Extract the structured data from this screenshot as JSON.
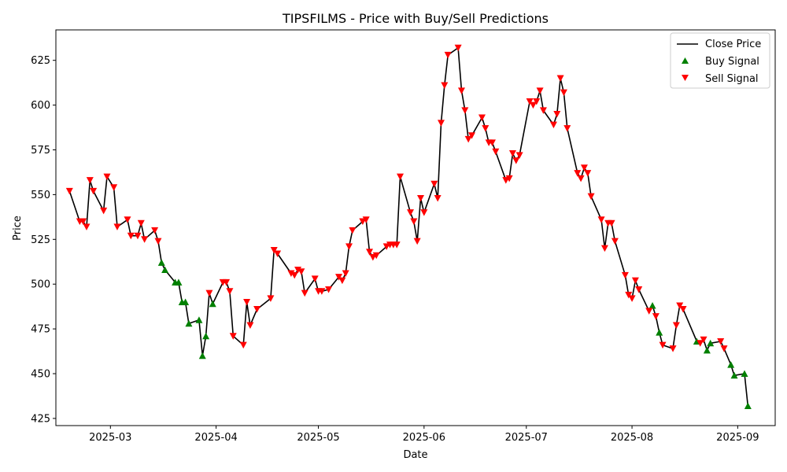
{
  "chart_data": {
    "type": "line",
    "title": "TIPSFILMS - Price with Buy/Sell Predictions",
    "xlabel": "Date",
    "ylabel": "Price",
    "xlim": [
      "2025-02-13",
      "2025-09-12"
    ],
    "ylim": [
      421,
      642
    ],
    "x_ticks": [
      "2025-03",
      "2025-04",
      "2025-05",
      "2025-06",
      "2025-07",
      "2025-08",
      "2025-09"
    ],
    "y_ticks": [
      425,
      450,
      475,
      500,
      525,
      550,
      575,
      600,
      625
    ],
    "grid": false,
    "legend_position": "top-right",
    "colors": {
      "close": "#000000",
      "buy": "#008000",
      "sell": "#ff0000"
    },
    "series": [
      {
        "name": "Close Price",
        "kind": "line",
        "points": [
          [
            "2025-02-17",
            552
          ],
          [
            "2025-02-20",
            535
          ],
          [
            "2025-02-21",
            535
          ],
          [
            "2025-02-22",
            532
          ],
          [
            "2025-02-23",
            558
          ],
          [
            "2025-02-24",
            552
          ],
          [
            "2025-02-27",
            541
          ],
          [
            "2025-02-28",
            560
          ],
          [
            "2025-03-02",
            554
          ],
          [
            "2025-03-03",
            532
          ],
          [
            "2025-03-06",
            536
          ],
          [
            "2025-03-07",
            527
          ],
          [
            "2025-03-09",
            527
          ],
          [
            "2025-03-10",
            534
          ],
          [
            "2025-03-11",
            525
          ],
          [
            "2025-03-14",
            530
          ],
          [
            "2025-03-15",
            524
          ],
          [
            "2025-03-16",
            512
          ],
          [
            "2025-03-17",
            508
          ],
          [
            "2025-03-20",
            501
          ],
          [
            "2025-03-21",
            501
          ],
          [
            "2025-03-22",
            490
          ],
          [
            "2025-03-23",
            490
          ],
          [
            "2025-03-24",
            478
          ],
          [
            "2025-03-27",
            480
          ],
          [
            "2025-03-28",
            460
          ],
          [
            "2025-03-29",
            471
          ],
          [
            "2025-03-30",
            495
          ],
          [
            "2025-03-31",
            489
          ],
          [
            "2025-04-03",
            501
          ],
          [
            "2025-04-04",
            501
          ],
          [
            "2025-04-05",
            496
          ],
          [
            "2025-04-06",
            471
          ],
          [
            "2025-04-09",
            466
          ],
          [
            "2025-04-10",
            490
          ],
          [
            "2025-04-11",
            477
          ],
          [
            "2025-04-13",
            486
          ],
          [
            "2025-04-17",
            492
          ],
          [
            "2025-04-18",
            519
          ],
          [
            "2025-04-19",
            517
          ],
          [
            "2025-04-23",
            506
          ],
          [
            "2025-04-24",
            505
          ],
          [
            "2025-04-25",
            508
          ],
          [
            "2025-04-26",
            507
          ],
          [
            "2025-04-27",
            495
          ],
          [
            "2025-04-30",
            503
          ],
          [
            "2025-05-01",
            496
          ],
          [
            "2025-05-02",
            496
          ],
          [
            "2025-05-04",
            497
          ],
          [
            "2025-05-07",
            504
          ],
          [
            "2025-05-08",
            502
          ],
          [
            "2025-05-09",
            506
          ],
          [
            "2025-05-10",
            521
          ],
          [
            "2025-05-11",
            530
          ],
          [
            "2025-05-14",
            535
          ],
          [
            "2025-05-15",
            536
          ],
          [
            "2025-05-16",
            518
          ],
          [
            "2025-05-17",
            515
          ],
          [
            "2025-05-18",
            516
          ],
          [
            "2025-05-21",
            521
          ],
          [
            "2025-05-22",
            522
          ],
          [
            "2025-05-23",
            522
          ],
          [
            "2025-05-24",
            522
          ],
          [
            "2025-05-25",
            560
          ],
          [
            "2025-05-28",
            540
          ],
          [
            "2025-05-29",
            535
          ],
          [
            "2025-05-30",
            524
          ],
          [
            "2025-05-31",
            548
          ],
          [
            "2025-06-01",
            540
          ],
          [
            "2025-06-04",
            556
          ],
          [
            "2025-06-05",
            548
          ],
          [
            "2025-06-06",
            590
          ],
          [
            "2025-06-07",
            611
          ],
          [
            "2025-06-08",
            628
          ],
          [
            "2025-06-11",
            632
          ],
          [
            "2025-06-12",
            608
          ],
          [
            "2025-06-13",
            597
          ],
          [
            "2025-06-14",
            581
          ],
          [
            "2025-06-15",
            583
          ],
          [
            "2025-06-18",
            593
          ],
          [
            "2025-06-19",
            587
          ],
          [
            "2025-06-20",
            579
          ],
          [
            "2025-06-21",
            579
          ],
          [
            "2025-06-22",
            574
          ],
          [
            "2025-06-25",
            558
          ],
          [
            "2025-06-26",
            559
          ],
          [
            "2025-06-27",
            573
          ],
          [
            "2025-06-28",
            569
          ],
          [
            "2025-06-29",
            572
          ],
          [
            "2025-07-02",
            602
          ],
          [
            "2025-07-03",
            600
          ],
          [
            "2025-07-04",
            602
          ],
          [
            "2025-07-05",
            608
          ],
          [
            "2025-07-06",
            597
          ],
          [
            "2025-07-09",
            589
          ],
          [
            "2025-07-10",
            595
          ],
          [
            "2025-07-11",
            615
          ],
          [
            "2025-07-12",
            607
          ],
          [
            "2025-07-13",
            587
          ],
          [
            "2025-07-16",
            562
          ],
          [
            "2025-07-17",
            559
          ],
          [
            "2025-07-18",
            565
          ],
          [
            "2025-07-19",
            562
          ],
          [
            "2025-07-20",
            549
          ],
          [
            "2025-07-23",
            536
          ],
          [
            "2025-07-24",
            520
          ],
          [
            "2025-07-25",
            534
          ],
          [
            "2025-07-26",
            534
          ],
          [
            "2025-07-27",
            524
          ],
          [
            "2025-07-30",
            505
          ],
          [
            "2025-07-31",
            494
          ],
          [
            "2025-08-01",
            492
          ],
          [
            "2025-08-02",
            502
          ],
          [
            "2025-08-03",
            497
          ],
          [
            "2025-08-06",
            485
          ],
          [
            "2025-08-07",
            488
          ],
          [
            "2025-08-08",
            482
          ],
          [
            "2025-08-09",
            473
          ],
          [
            "2025-08-10",
            466
          ],
          [
            "2025-08-13",
            464
          ],
          [
            "2025-08-14",
            477
          ],
          [
            "2025-08-15",
            488
          ],
          [
            "2025-08-16",
            486
          ],
          [
            "2025-08-20",
            468
          ],
          [
            "2025-08-21",
            467
          ],
          [
            "2025-08-22",
            469
          ],
          [
            "2025-08-23",
            463
          ],
          [
            "2025-08-24",
            467
          ],
          [
            "2025-08-27",
            468
          ],
          [
            "2025-08-28",
            464
          ],
          [
            "2025-08-30",
            455
          ],
          [
            "2025-08-31",
            449
          ],
          [
            "2025-09-03",
            450
          ],
          [
            "2025-09-04",
            432
          ]
        ]
      },
      {
        "name": "Buy Signal",
        "kind": "scatter",
        "marker": "triangle-up",
        "points": [
          [
            "2025-03-16",
            512
          ],
          [
            "2025-03-17",
            508
          ],
          [
            "2025-03-20",
            501
          ],
          [
            "2025-03-21",
            501
          ],
          [
            "2025-03-22",
            490
          ],
          [
            "2025-03-23",
            490
          ],
          [
            "2025-03-24",
            478
          ],
          [
            "2025-03-27",
            480
          ],
          [
            "2025-03-28",
            460
          ],
          [
            "2025-03-29",
            471
          ],
          [
            "2025-03-31",
            489
          ],
          [
            "2025-08-07",
            488
          ],
          [
            "2025-08-09",
            473
          ],
          [
            "2025-08-20",
            468
          ],
          [
            "2025-08-23",
            463
          ],
          [
            "2025-08-24",
            467
          ],
          [
            "2025-08-30",
            455
          ],
          [
            "2025-08-31",
            449
          ],
          [
            "2025-09-03",
            450
          ],
          [
            "2025-09-04",
            432
          ]
        ]
      },
      {
        "name": "Sell Signal",
        "kind": "scatter",
        "marker": "triangle-down",
        "points": [
          [
            "2025-02-17",
            552
          ],
          [
            "2025-02-20",
            535
          ],
          [
            "2025-02-21",
            535
          ],
          [
            "2025-02-22",
            532
          ],
          [
            "2025-02-23",
            558
          ],
          [
            "2025-02-24",
            552
          ],
          [
            "2025-02-27",
            541
          ],
          [
            "2025-02-28",
            560
          ],
          [
            "2025-03-02",
            554
          ],
          [
            "2025-03-03",
            532
          ],
          [
            "2025-03-06",
            536
          ],
          [
            "2025-03-07",
            527
          ],
          [
            "2025-03-09",
            527
          ],
          [
            "2025-03-10",
            534
          ],
          [
            "2025-03-11",
            525
          ],
          [
            "2025-03-14",
            530
          ],
          [
            "2025-03-15",
            524
          ],
          [
            "2025-03-30",
            495
          ],
          [
            "2025-04-03",
            501
          ],
          [
            "2025-04-04",
            501
          ],
          [
            "2025-04-05",
            496
          ],
          [
            "2025-04-06",
            471
          ],
          [
            "2025-04-09",
            466
          ],
          [
            "2025-04-10",
            490
          ],
          [
            "2025-04-11",
            477
          ],
          [
            "2025-04-13",
            486
          ],
          [
            "2025-04-17",
            492
          ],
          [
            "2025-04-18",
            519
          ],
          [
            "2025-04-19",
            517
          ],
          [
            "2025-04-23",
            506
          ],
          [
            "2025-04-24",
            505
          ],
          [
            "2025-04-25",
            508
          ],
          [
            "2025-04-26",
            507
          ],
          [
            "2025-04-27",
            495
          ],
          [
            "2025-04-30",
            503
          ],
          [
            "2025-05-01",
            496
          ],
          [
            "2025-05-02",
            496
          ],
          [
            "2025-05-04",
            497
          ],
          [
            "2025-05-07",
            504
          ],
          [
            "2025-05-08",
            502
          ],
          [
            "2025-05-09",
            506
          ],
          [
            "2025-05-10",
            521
          ],
          [
            "2025-05-11",
            530
          ],
          [
            "2025-05-14",
            535
          ],
          [
            "2025-05-15",
            536
          ],
          [
            "2025-05-16",
            518
          ],
          [
            "2025-05-17",
            515
          ],
          [
            "2025-05-18",
            516
          ],
          [
            "2025-05-21",
            521
          ],
          [
            "2025-05-22",
            522
          ],
          [
            "2025-05-23",
            522
          ],
          [
            "2025-05-24",
            522
          ],
          [
            "2025-05-25",
            560
          ],
          [
            "2025-05-28",
            540
          ],
          [
            "2025-05-29",
            535
          ],
          [
            "2025-05-30",
            524
          ],
          [
            "2025-05-31",
            548
          ],
          [
            "2025-06-01",
            540
          ],
          [
            "2025-06-04",
            556
          ],
          [
            "2025-06-05",
            548
          ],
          [
            "2025-06-06",
            590
          ],
          [
            "2025-06-07",
            611
          ],
          [
            "2025-06-08",
            628
          ],
          [
            "2025-06-11",
            632
          ],
          [
            "2025-06-12",
            608
          ],
          [
            "2025-06-13",
            597
          ],
          [
            "2025-06-14",
            581
          ],
          [
            "2025-06-15",
            583
          ],
          [
            "2025-06-18",
            593
          ],
          [
            "2025-06-19",
            587
          ],
          [
            "2025-06-20",
            579
          ],
          [
            "2025-06-21",
            579
          ],
          [
            "2025-06-22",
            574
          ],
          [
            "2025-06-25",
            558
          ],
          [
            "2025-06-26",
            559
          ],
          [
            "2025-06-27",
            573
          ],
          [
            "2025-06-28",
            569
          ],
          [
            "2025-06-29",
            572
          ],
          [
            "2025-07-02",
            602
          ],
          [
            "2025-07-03",
            600
          ],
          [
            "2025-07-04",
            602
          ],
          [
            "2025-07-05",
            608
          ],
          [
            "2025-07-06",
            597
          ],
          [
            "2025-07-09",
            589
          ],
          [
            "2025-07-10",
            595
          ],
          [
            "2025-07-11",
            615
          ],
          [
            "2025-07-12",
            607
          ],
          [
            "2025-07-13",
            587
          ],
          [
            "2025-07-16",
            562
          ],
          [
            "2025-07-17",
            559
          ],
          [
            "2025-07-18",
            565
          ],
          [
            "2025-07-19",
            562
          ],
          [
            "2025-07-20",
            549
          ],
          [
            "2025-07-23",
            536
          ],
          [
            "2025-07-24",
            520
          ],
          [
            "2025-07-25",
            534
          ],
          [
            "2025-07-26",
            534
          ],
          [
            "2025-07-27",
            524
          ],
          [
            "2025-07-30",
            505
          ],
          [
            "2025-07-31",
            494
          ],
          [
            "2025-08-01",
            492
          ],
          [
            "2025-08-02",
            502
          ],
          [
            "2025-08-03",
            497
          ],
          [
            "2025-08-06",
            485
          ],
          [
            "2025-08-08",
            482
          ],
          [
            "2025-08-10",
            466
          ],
          [
            "2025-08-13",
            464
          ],
          [
            "2025-08-14",
            477
          ],
          [
            "2025-08-15",
            488
          ],
          [
            "2025-08-16",
            486
          ],
          [
            "2025-08-21",
            467
          ],
          [
            "2025-08-22",
            469
          ],
          [
            "2025-08-27",
            468
          ],
          [
            "2025-08-28",
            464
          ]
        ]
      }
    ]
  }
}
